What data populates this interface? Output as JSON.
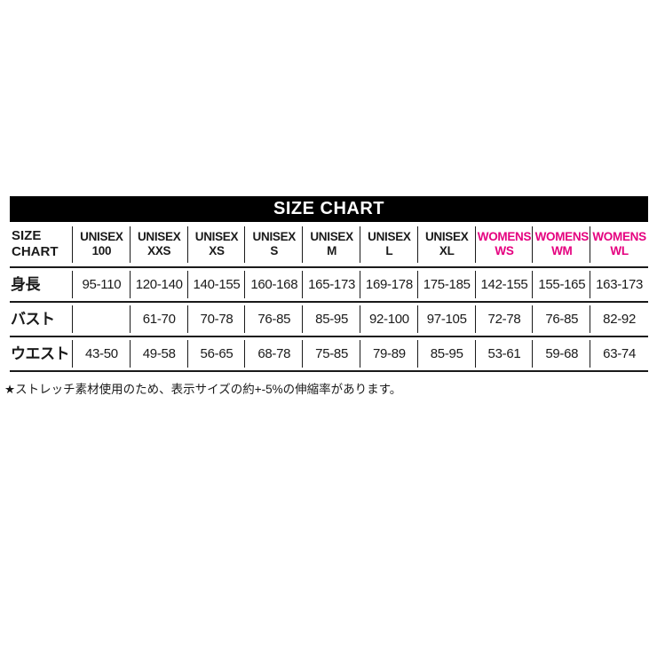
{
  "banner": {
    "title": "SIZE CHART"
  },
  "size_table": {
    "corner_label": {
      "line1": "SIZE",
      "line2": "CHART"
    },
    "column_headers": [
      {
        "line1": "UNISEX",
        "line2": "100"
      },
      {
        "line1": "UNISEX",
        "line2": "XXS"
      },
      {
        "line1": "UNISEX",
        "line2": "XS"
      },
      {
        "line1": "UNISEX",
        "line2": "S"
      },
      {
        "line1": "UNISEX",
        "line2": "M"
      },
      {
        "line1": "UNISEX",
        "line2": "L"
      },
      {
        "line1": "UNISEX",
        "line2": "XL"
      },
      {
        "line1": "WOMENS",
        "line2": "WS"
      },
      {
        "line1": "WOMENS",
        "line2": "WM"
      },
      {
        "line1": "WOMENS",
        "line2": "WL"
      }
    ],
    "rows": [
      {
        "label": "身長",
        "values": [
          "95-110",
          "120-140",
          "140-155",
          "160-168",
          "165-173",
          "169-178",
          "175-185",
          "142-155",
          "155-165",
          "163-173"
        ]
      },
      {
        "label": "バスト",
        "values": [
          "",
          "61-70",
          "70-78",
          "76-85",
          "85-95",
          "92-100",
          "97-105",
          "72-78",
          "76-85",
          "82-92"
        ]
      },
      {
        "label": "ウエスト",
        "values": [
          "43-50",
          "49-58",
          "56-65",
          "68-78",
          "75-85",
          "79-89",
          "85-95",
          "53-61",
          "59-68",
          "63-74"
        ]
      }
    ]
  },
  "footnote": "★ストレッチ素材使用のため、表示サイズの約+-5%の伸縮率があります。",
  "colors": {
    "womens_accent": "#e5007f",
    "line_color": "#1a1a1a",
    "banner_bg": "#000000",
    "banner_text": "#ffffff"
  }
}
